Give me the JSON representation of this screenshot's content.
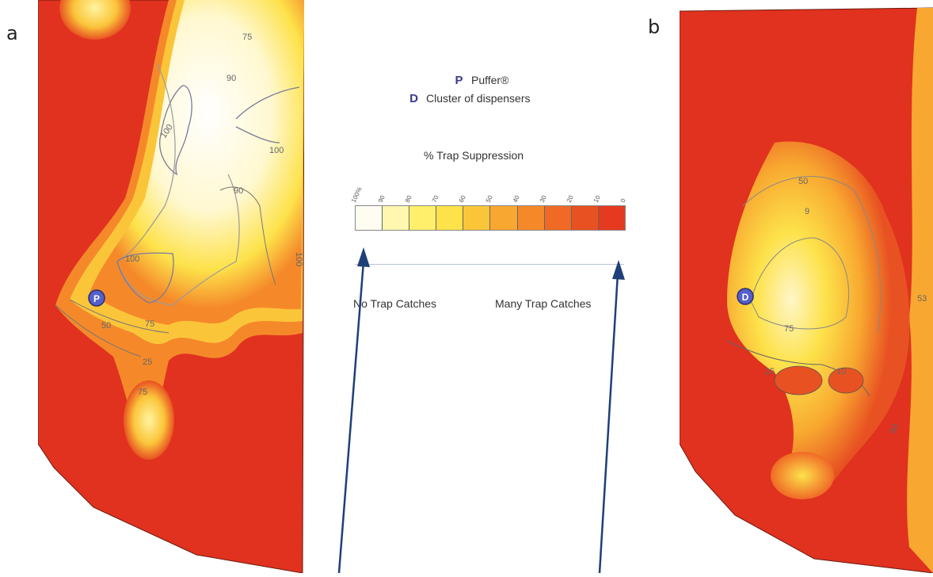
{
  "panels": {
    "a": {
      "label": "a",
      "marker_letter": "P",
      "contour_labels": [
        "75",
        "90",
        "100",
        "100",
        "90",
        "100",
        "100",
        "75",
        "50",
        "25",
        "75"
      ]
    },
    "b": {
      "label": "b",
      "marker_letter": "D",
      "contour_labels": [
        "50",
        "9",
        "75",
        "25",
        "10",
        "50",
        "53"
      ]
    }
  },
  "legend": {
    "puffer_marker": "P",
    "puffer_label": "Puffer®",
    "dispenser_marker": "D",
    "dispenser_label": "Cluster of dispensers",
    "title": "% Trap Suppression",
    "scale_ticks": [
      "100%",
      "90",
      "80",
      "70",
      "60",
      "50",
      "40",
      "30",
      "20",
      "10",
      "0"
    ],
    "scale_colors": [
      "#fffdf2",
      "#fff7b0",
      "#ffef6a",
      "#fde24a",
      "#fbc53a",
      "#f8a830",
      "#f5892a",
      "#f06a26",
      "#e85222",
      "#e63a20"
    ],
    "left_caption": "No Trap Catches",
    "right_caption": "Many Trap Catches"
  },
  "colors": {
    "hot": "#e0321f",
    "mid": "#fbb33a",
    "light": "#fff6a8",
    "cool": "#ffffff",
    "marker": "#5560c8",
    "arrow": "#1f3f78"
  }
}
